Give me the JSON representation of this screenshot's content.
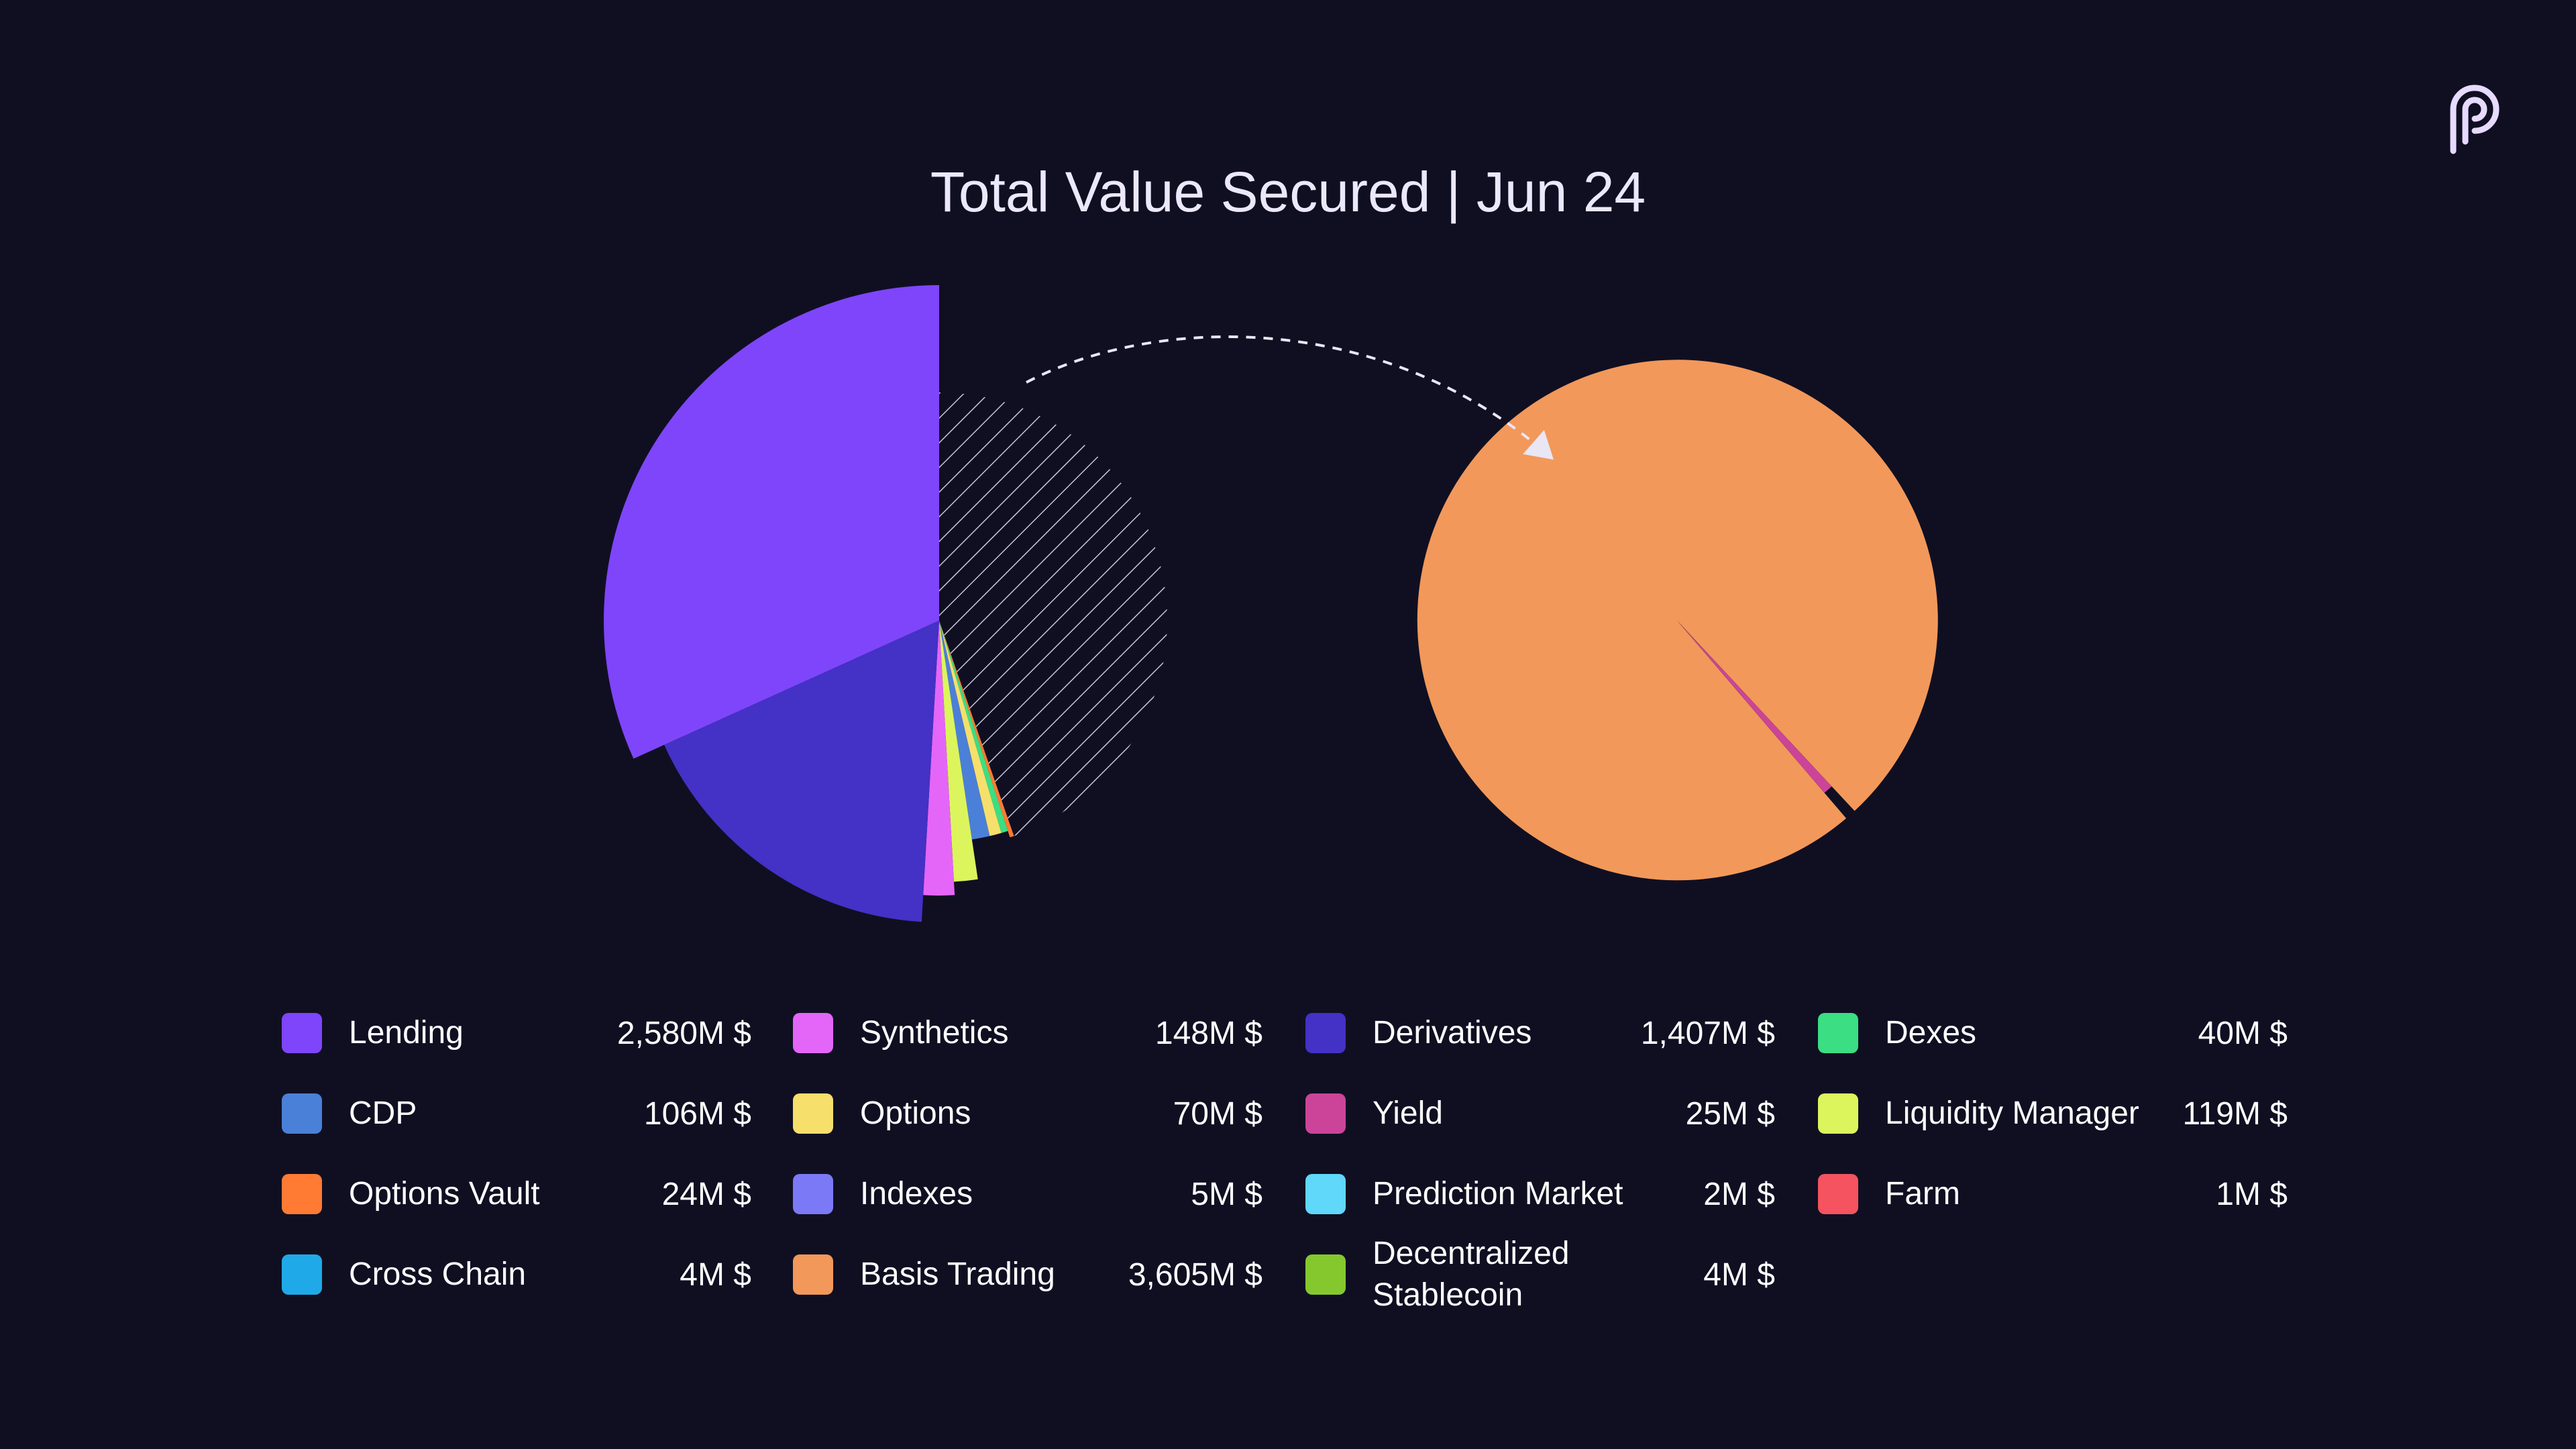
{
  "title": "Total Value Secured | Jun 24",
  "logo": {
    "icon": "pyth-logo-icon",
    "color": "#e6dafe"
  },
  "chart_data": [
    {
      "type": "pie",
      "title": "",
      "style": "exploded-segments",
      "slices": [
        {
          "label": "Lending",
          "value": 2580,
          "color": "#7f45fa"
        },
        {
          "label": "Derivatives",
          "value": 1407,
          "color": "#4431c6"
        },
        {
          "label": "Synthetics",
          "value": 148,
          "color": "#e466f8"
        },
        {
          "label": "Liquidity Manager",
          "value": 119,
          "color": "#dcf55c"
        },
        {
          "label": "CDP",
          "value": 106,
          "color": "#4b80d8"
        },
        {
          "label": "Options",
          "value": 70,
          "color": "#f7df6c"
        },
        {
          "label": "Dexes",
          "value": 40,
          "color": "#3bde82"
        },
        {
          "label": "Options Vault",
          "value": 24,
          "color": "#ff7a33"
        },
        {
          "label": "Other (Basis Trading + Yield, expanded right)",
          "value": 3630,
          "color": "hatched"
        }
      ]
    },
    {
      "type": "pie",
      "title": "",
      "style": "exploded-segments",
      "slices": [
        {
          "label": "Basis Trading",
          "value": 3605,
          "color": "#f2985a"
        },
        {
          "label": "Yield",
          "value": 25,
          "color": "#cc4499"
        }
      ]
    }
  ],
  "legend": {
    "columns": [
      [
        {
          "label": "Lending",
          "value": "2,580M $",
          "color": "#7f45fa"
        },
        {
          "label": "CDP",
          "value": "106M $",
          "color": "#4b80d8"
        },
        {
          "label": "Options Vault",
          "value": "24M $",
          "color": "#ff7a33"
        },
        {
          "label": "Cross Chain",
          "value": "4M $",
          "color": "#20a9e8"
        }
      ],
      [
        {
          "label": "Synthetics",
          "value": "148M $",
          "color": "#e466f8"
        },
        {
          "label": "Options",
          "value": "70M $",
          "color": "#f7df6c"
        },
        {
          "label": "Indexes",
          "value": "5M $",
          "color": "#7c79f6"
        },
        {
          "label": "Basis Trading",
          "value": "3,605M $",
          "color": "#f2985a"
        }
      ],
      [
        {
          "label": "Derivatives",
          "value": "1,407M $",
          "color": "#4431c6"
        },
        {
          "label": "Yield",
          "value": "25M $",
          "color": "#cc4499"
        },
        {
          "label": "Prediction Market",
          "value": "2M $",
          "color": "#5fd8fa"
        },
        {
          "label": "Decentralized Stablecoin",
          "value": "4M $",
          "color": "#84c82e"
        }
      ],
      [
        {
          "label": "Dexes",
          "value": "40M $",
          "color": "#3bde82"
        },
        {
          "label": "Liquidity Manager",
          "value": "119M $",
          "color": "#dcf55c"
        },
        {
          "label": "Farm",
          "value": "1M $",
          "color": "#f4535f"
        }
      ]
    ]
  }
}
